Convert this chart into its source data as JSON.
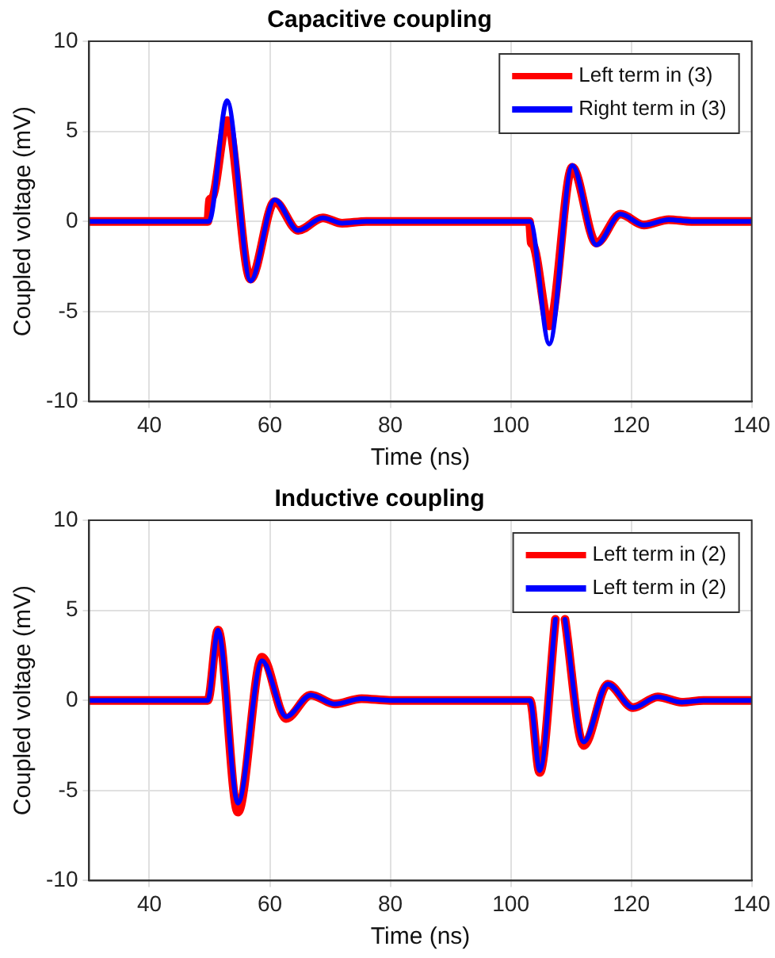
{
  "chart_data": [
    {
      "type": "line",
      "title": "Capacitive coupling",
      "xlabel": "Time (ns)",
      "ylabel": "Coupled voltage (mV)",
      "xlim": [
        30,
        140
      ],
      "xticks": [
        40,
        60,
        80,
        100,
        120,
        140
      ],
      "ylim": [
        -10,
        10
      ],
      "yticks": [
        -10,
        -5,
        0,
        5,
        10
      ],
      "grid": true,
      "legend": "top right",
      "marker": "none",
      "line_style": "solid",
      "series": [
        {
          "name": "Left term in (3)",
          "color": "#ff0000",
          "x": [
            30,
            49.7,
            50.0,
            50.4,
            52.9,
            56.8,
            60.8,
            64.7,
            68.8,
            72,
            76,
            103.1,
            103.4,
            103.7,
            106.4,
            110.2,
            114.2,
            118.2,
            122.1,
            126.2,
            130,
            140
          ],
          "values": [
            0,
            0,
            1.2,
            1.3,
            5.6,
            -3.2,
            1.1,
            -0.5,
            0.2,
            -0.1,
            0,
            0,
            -1.2,
            -1.3,
            -5.8,
            3.0,
            -1.2,
            0.4,
            -0.2,
            0.1,
            0,
            0
          ]
        },
        {
          "name": "Right term in (3)",
          "color": "#0000ff",
          "x": [
            30,
            49.9,
            52.9,
            56.8,
            60.8,
            64.7,
            68.8,
            72,
            76,
            103.2,
            106.4,
            110.2,
            114.2,
            118.2,
            122.1,
            126.2,
            130,
            140
          ],
          "values": [
            0,
            0,
            6.7,
            -3.3,
            1.2,
            -0.5,
            0.2,
            -0.1,
            0,
            0,
            -6.8,
            3.1,
            -1.3,
            0.4,
            -0.2,
            0.1,
            0,
            0
          ]
        }
      ]
    },
    {
      "type": "line",
      "title": "Inductive coupling",
      "xlabel": "Time (ns)",
      "ylabel": "Coupled voltage (mV)",
      "xlim": [
        30,
        140
      ],
      "xticks": [
        40,
        60,
        80,
        100,
        120,
        140
      ],
      "ylim": [
        -10,
        10
      ],
      "yticks": [
        -10,
        -5,
        0,
        5,
        10
      ],
      "grid": true,
      "legend": "top right",
      "marker": "none",
      "line_style": "solid",
      "series": [
        {
          "name": "Left term in (2)",
          "color": "#ff0000",
          "x": [
            30,
            49.7,
            51.4,
            54.7,
            58.7,
            62.7,
            66.8,
            70.8,
            75.2,
            80,
            103.2,
            104.8,
            107.4,
            108.2,
            109.0,
            112.1,
            116.1,
            120.3,
            124.4,
            128.4,
            132,
            140
          ],
          "values": [
            0,
            0,
            3.9,
            -6.2,
            2.4,
            -1.0,
            0.3,
            -0.2,
            0.1,
            0,
            0,
            -4.0,
            4.5,
            null,
            4.5,
            -2.5,
            0.9,
            -0.4,
            0.2,
            -0.1,
            0,
            0
          ]
        },
        {
          "name": "Left term in (2)",
          "color": "#0000ff",
          "x": [
            30,
            49.7,
            51.4,
            54.7,
            58.7,
            62.7,
            66.8,
            70.8,
            75.2,
            80,
            103.2,
            104.8,
            107.4,
            108.2,
            109.0,
            112.1,
            116.1,
            120.3,
            124.4,
            128.4,
            132,
            140
          ],
          "values": [
            0,
            0,
            3.9,
            -5.7,
            2.2,
            -0.9,
            0.3,
            -0.2,
            0.1,
            0,
            0,
            -3.9,
            4.5,
            null,
            4.5,
            -2.3,
            0.9,
            -0.4,
            0.2,
            -0.1,
            0,
            0
          ]
        }
      ]
    }
  ]
}
